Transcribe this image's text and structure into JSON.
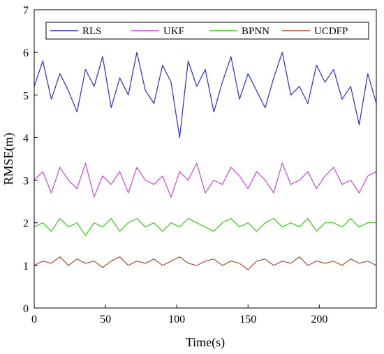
{
  "chart_data": {
    "type": "line",
    "title": "",
    "xlabel": "Time(s)",
    "ylabel": "RMSE(m)",
    "xlim": [
      0,
      240
    ],
    "ylim": [
      0,
      7
    ],
    "xticks": [
      0,
      50,
      100,
      150,
      200
    ],
    "yticks": [
      0,
      1,
      2,
      3,
      4,
      5,
      6,
      7
    ],
    "grid": false,
    "legend_placement": "top",
    "series": [
      {
        "name": "RLS",
        "color": "#2a2ae0",
        "x": [
          0,
          6,
          12,
          18,
          24,
          30,
          36,
          42,
          48,
          54,
          60,
          66,
          72,
          78,
          84,
          90,
          96,
          102,
          108,
          114,
          120,
          126,
          132,
          138,
          144,
          150,
          156,
          162,
          168,
          174,
          180,
          186,
          192,
          198,
          204,
          210,
          216,
          222,
          228,
          234,
          240
        ],
        "values": [
          5.2,
          5.8,
          4.9,
          5.5,
          5.1,
          4.6,
          5.6,
          5.2,
          5.9,
          4.7,
          5.4,
          5.0,
          6.0,
          5.1,
          4.8,
          5.7,
          5.3,
          4.0,
          5.8,
          5.2,
          5.6,
          4.6,
          5.3,
          5.9,
          4.9,
          5.5,
          5.1,
          4.7,
          5.4,
          6.0,
          5.0,
          5.2,
          4.8,
          5.7,
          5.3,
          5.6,
          4.9,
          5.2,
          4.3,
          5.5,
          4.8
        ]
      },
      {
        "name": "UKF",
        "color": "#cc44dd",
        "x": [
          0,
          6,
          12,
          18,
          24,
          30,
          36,
          42,
          48,
          54,
          60,
          66,
          72,
          78,
          84,
          90,
          96,
          102,
          108,
          114,
          120,
          126,
          132,
          138,
          144,
          150,
          156,
          162,
          168,
          174,
          180,
          186,
          192,
          198,
          204,
          210,
          216,
          222,
          228,
          234,
          240
        ],
        "values": [
          3.0,
          3.2,
          2.7,
          3.3,
          3.0,
          2.8,
          3.4,
          2.6,
          3.1,
          2.9,
          3.2,
          2.7,
          3.3,
          3.0,
          2.9,
          3.1,
          2.6,
          3.2,
          3.0,
          3.4,
          2.7,
          3.0,
          2.9,
          3.3,
          3.1,
          2.8,
          3.2,
          3.0,
          2.7,
          3.4,
          2.9,
          3.0,
          3.2,
          2.8,
          3.1,
          3.3,
          2.9,
          3.0,
          2.7,
          3.1,
          3.2
        ]
      },
      {
        "name": "BPNN",
        "color": "#33cc11",
        "x": [
          0,
          6,
          12,
          18,
          24,
          30,
          36,
          42,
          48,
          54,
          60,
          66,
          72,
          78,
          84,
          90,
          96,
          102,
          108,
          114,
          120,
          126,
          132,
          138,
          144,
          150,
          156,
          162,
          168,
          174,
          180,
          186,
          192,
          198,
          204,
          210,
          216,
          222,
          228,
          234,
          240
        ],
        "values": [
          1.9,
          2.0,
          1.8,
          2.1,
          1.9,
          2.0,
          1.7,
          2.0,
          1.9,
          2.1,
          1.8,
          2.0,
          2.1,
          1.9,
          2.0,
          1.8,
          2.0,
          1.9,
          2.1,
          2.0,
          1.9,
          1.8,
          2.0,
          2.1,
          1.9,
          2.0,
          1.8,
          2.0,
          2.1,
          1.9,
          2.0,
          1.9,
          2.1,
          1.8,
          2.0,
          2.0,
          1.9,
          2.1,
          1.9,
          2.0,
          2.0
        ]
      },
      {
        "name": "UCDFP",
        "color": "#a84a30",
        "x": [
          0,
          6,
          12,
          18,
          24,
          30,
          36,
          42,
          48,
          54,
          60,
          66,
          72,
          78,
          84,
          90,
          96,
          102,
          108,
          114,
          120,
          126,
          132,
          138,
          144,
          150,
          156,
          162,
          168,
          174,
          180,
          186,
          192,
          198,
          204,
          210,
          216,
          222,
          228,
          234,
          240
        ],
        "values": [
          1.0,
          1.1,
          1.05,
          1.2,
          1.0,
          1.15,
          1.05,
          1.1,
          0.95,
          1.1,
          1.2,
          1.0,
          1.1,
          1.05,
          1.15,
          1.0,
          1.1,
          1.2,
          1.05,
          1.0,
          1.1,
          1.15,
          1.0,
          1.1,
          1.05,
          0.9,
          1.1,
          1.15,
          1.0,
          1.1,
          1.05,
          1.2,
          1.0,
          1.1,
          1.05,
          1.1,
          1.0,
          1.15,
          1.05,
          1.1,
          1.0
        ]
      }
    ]
  }
}
